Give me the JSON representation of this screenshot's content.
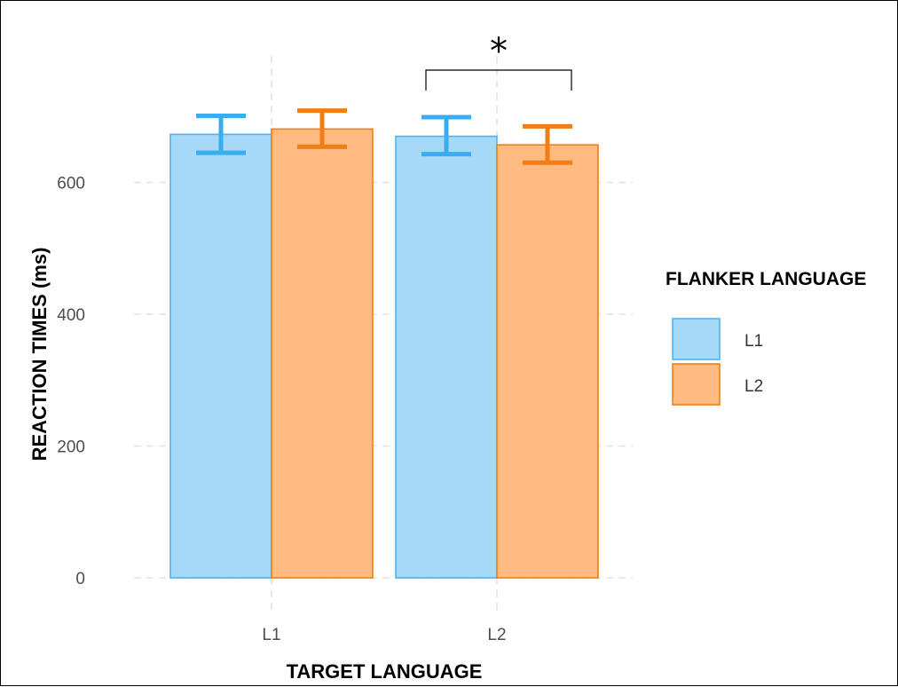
{
  "chart_data": {
    "type": "bar",
    "title": "",
    "xlabel": "TARGET LANGUAGE",
    "ylabel": "REACTION TIMES (ms)",
    "categories": [
      "L1",
      "L2"
    ],
    "ylim": [
      0,
      700
    ],
    "yticks": [
      0,
      200,
      400,
      600
    ],
    "grid": true,
    "legend": {
      "title": "FLANKER LANGUAGE",
      "position": "right"
    },
    "series": [
      {
        "name": "L1",
        "color": "#a6d8f7",
        "stroke": "#4fb4ef",
        "error_color": "#3aacf0",
        "values": [
          673,
          670
        ],
        "error_low": [
          645,
          643
        ],
        "error_high": [
          701,
          699
        ]
      },
      {
        "name": "L2",
        "color": "#ffbb80",
        "stroke": "#f07d16",
        "error_color": "#f07d16",
        "values": [
          681,
          657
        ],
        "error_low": [
          654,
          630
        ],
        "error_high": [
          709,
          685
        ]
      }
    ],
    "annotations": [
      {
        "type": "significance_bracket",
        "category": "L2",
        "label": "*"
      }
    ]
  }
}
